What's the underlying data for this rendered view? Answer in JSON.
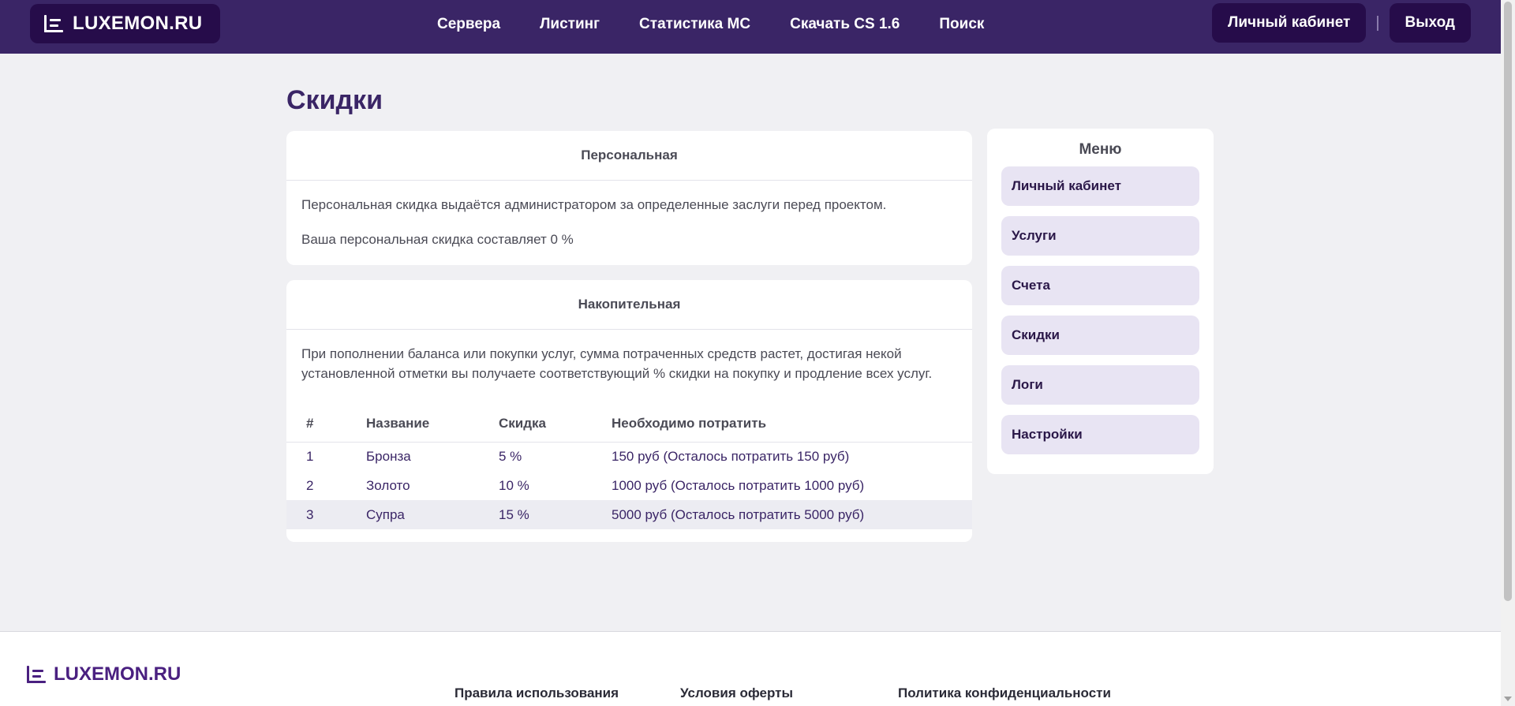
{
  "header": {
    "logo_text": "LUXEMON.RU",
    "nav": [
      "Сервера",
      "Листинг",
      "Статистика МС",
      "Скачать CS 1.6",
      "Поиск"
    ],
    "account_label": "Личный кабинет",
    "separator": "|",
    "logout_label": "Выход"
  },
  "page": {
    "title": "Скидки"
  },
  "personal": {
    "heading": "Персональная",
    "description": "Персональная скидка выдаётся администратором за определенные заслуги перед проектом.",
    "current": "Ваша персональная скидка составляет 0 %"
  },
  "cumulative": {
    "heading": "Накопительная",
    "description": "При пополнении баланса или покупки услуг, сумма потраченных средств растет, достигая некой установленной отметки вы получаете соответствующий % скидки на покупку и продление всех услуг.",
    "columns": [
      "#",
      "Название",
      "Скидка",
      "Необходимо потратить"
    ],
    "rows": [
      {
        "num": "1",
        "name": "Бронза",
        "discount": "5 %",
        "required": "150 руб (Осталось потратить 150 руб)"
      },
      {
        "num": "2",
        "name": "Золото",
        "discount": "10 %",
        "required": "1000 руб (Осталось потратить 1000 руб)"
      },
      {
        "num": "3",
        "name": "Супра",
        "discount": "15 %",
        "required": "5000 руб (Осталось потратить 5000 руб)"
      }
    ]
  },
  "sidebar": {
    "title": "Меню",
    "items": [
      "Личный кабинет",
      "Услуги",
      "Счета",
      "Скидки",
      "Логи",
      "Настройки"
    ]
  },
  "footer": {
    "logo_text": "LUXEMON.RU",
    "links": [
      "Правила использования",
      "Условия оферты",
      "Политика конфиденциальности"
    ]
  },
  "colors": {
    "header_bg": "#3a2566",
    "button_bg": "#260c4a",
    "sidebar_item_bg": "#e8e4f3",
    "page_bg": "#f0f0f3"
  }
}
